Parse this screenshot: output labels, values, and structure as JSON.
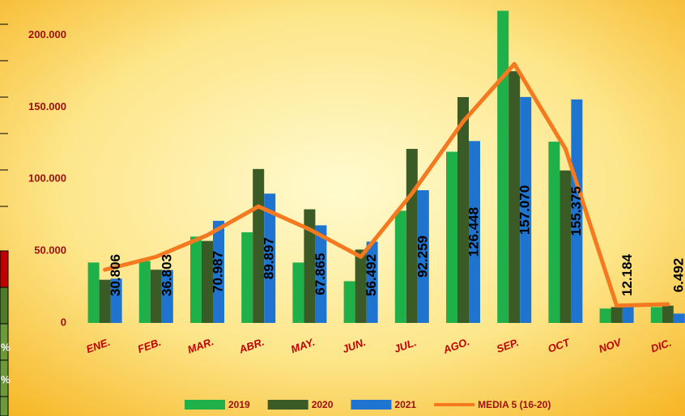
{
  "chart_data": {
    "type": "bar",
    "categories": [
      "ENE.",
      "FEB.",
      "MAR.",
      "ABR.",
      "MAY.",
      "JUN.",
      "JUL.",
      "AGO.",
      "SEP.",
      "OCT",
      "NOV",
      "DIC."
    ],
    "series": [
      {
        "name": "2019",
        "color": "#1fb04a",
        "values": [
          42000,
          43000,
          60000,
          63000,
          42000,
          29000,
          78000,
          119000,
          217000,
          126000,
          10000,
          11000
        ]
      },
      {
        "name": "2020",
        "color": "#3a5a26",
        "values": [
          30000,
          37000,
          57000,
          107000,
          79000,
          51000,
          121000,
          157000,
          175000,
          106000,
          11000,
          12000
        ]
      },
      {
        "name": "2021",
        "color": "#1f74d0",
        "values": [
          30806,
          36803,
          70987,
          89897,
          67865,
          56492,
          92259,
          126448,
          157070,
          155375,
          12184,
          6492
        ],
        "value_labels": [
          "30.806",
          "36.803",
          "70.987",
          "89.897",
          "67.865",
          "56.492",
          "92.259",
          "126.448",
          "157.070",
          "155.375",
          "12.184",
          "6.492"
        ]
      },
      {
        "name": "MEDIA 5 (16-20)",
        "color": "#f4791f",
        "type": "line",
        "values": [
          37000,
          46000,
          61000,
          81000,
          65000,
          46000,
          90000,
          140000,
          180000,
          121000,
          12000,
          13000
        ]
      }
    ],
    "ylim": [
      0,
      220000
    ],
    "yticks": [
      {
        "value": 0,
        "label": "0"
      },
      {
        "value": 50000,
        "label": "50.000"
      },
      {
        "value": 100000,
        "label": "100.000"
      },
      {
        "value": 150000,
        "label": "150.000"
      },
      {
        "value": 200000,
        "label": "200.000"
      }
    ],
    "grid": false,
    "legend": "bottom",
    "fragments": [
      "%",
      "%"
    ]
  }
}
